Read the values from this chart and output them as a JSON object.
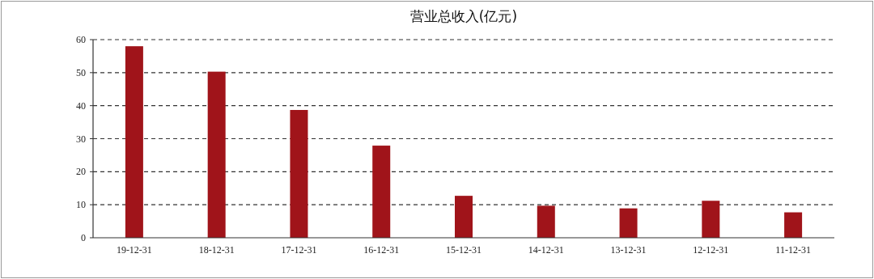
{
  "chart_data": {
    "type": "bar",
    "title": "营业总收入(亿元)",
    "categories": [
      "19-12-31",
      "18-12-31",
      "17-12-31",
      "16-12-31",
      "15-12-31",
      "14-12-31",
      "13-12-31",
      "12-12-31",
      "11-12-31"
    ],
    "values": [
      58.0,
      50.3,
      38.7,
      27.9,
      12.7,
      9.7,
      8.9,
      11.2,
      7.7
    ],
    "color": "#a0141a",
    "ylim": [
      0,
      60
    ],
    "yticks": [
      0,
      10,
      20,
      30,
      40,
      50,
      60
    ],
    "grid": "y"
  }
}
